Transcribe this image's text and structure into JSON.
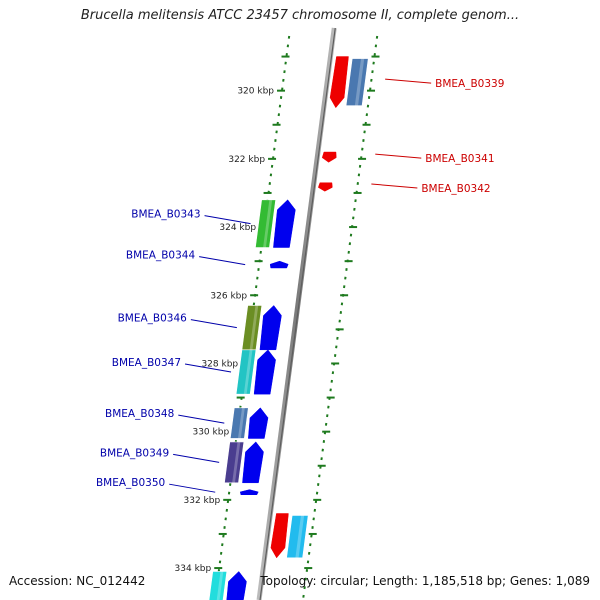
{
  "title": "Brucella melitensis ATCC 23457 chromosome II, complete genom...",
  "footer": {
    "accession": "Accession: NC_012442",
    "stats": "Topology: circular; Length: 1,185,518 bp; Genes: 1,089"
  },
  "colors": {
    "backbone": "#8a8a8a",
    "tick": "#1e7a1e",
    "forward_gene_label": "#0000aa",
    "reverse_gene_label": "#cc0000",
    "cds": "#0000ee",
    "reverse_cds": "#ee0000"
  },
  "scale_labels": [
    "320 kbp",
    "322 kbp",
    "324 kbp",
    "326 kbp",
    "328 kbp",
    "330 kbp",
    "332 kbp",
    "334 kbp"
  ],
  "reverse_genes": [
    {
      "label": "BMEA_B0339",
      "start_kbp": 319.0,
      "end_kbp": 320.5,
      "cog_color": "#4a78b0",
      "show_cog": true
    },
    {
      "label": "BMEA_B0341",
      "start_kbp": 321.8,
      "end_kbp": 322.1,
      "cog_color": "",
      "show_cog": false
    },
    {
      "label": "BMEA_B0342",
      "start_kbp": 322.7,
      "end_kbp": 322.95,
      "cog_color": "",
      "show_cog": false
    }
  ],
  "forward_genes": [
    {
      "label": "BMEA_B0343",
      "start_kbp": 323.2,
      "end_kbp": 324.6,
      "cog_color": "#33bb33",
      "show_cog": true
    },
    {
      "label": "BMEA_B0344",
      "start_kbp": 325.0,
      "end_kbp": 325.2,
      "cog_color": "",
      "show_cog": false
    },
    {
      "label": "BMEA_B0346",
      "start_kbp": 326.3,
      "end_kbp": 327.6,
      "cog_color": "#6b8e23",
      "show_cog": true
    },
    {
      "label": "BMEA_B0347",
      "start_kbp": 327.6,
      "end_kbp": 328.9,
      "cog_color": "#22c4c4",
      "show_cog": true
    },
    {
      "label": "BMEA_B0348",
      "start_kbp": 329.3,
      "end_kbp": 330.2,
      "cog_color": "#4a78b0",
      "show_cog": true
    },
    {
      "label": "BMEA_B0349",
      "start_kbp": 330.3,
      "end_kbp": 331.5,
      "cog_color": "#4a3d8f",
      "show_cog": true
    },
    {
      "label": "BMEA_B0350",
      "start_kbp": 331.7,
      "end_kbp": 331.85,
      "cog_color": "",
      "show_cog": false
    }
  ],
  "unlabeled_reverse_genes": [
    {
      "start_kbp": 332.4,
      "end_kbp": 333.7,
      "cog_color": "#22bbee"
    }
  ],
  "unlabeled_forward_genes": [
    {
      "start_kbp": 334.1,
      "end_kbp": 335.2,
      "cog_color": "#22dddd"
    }
  ]
}
